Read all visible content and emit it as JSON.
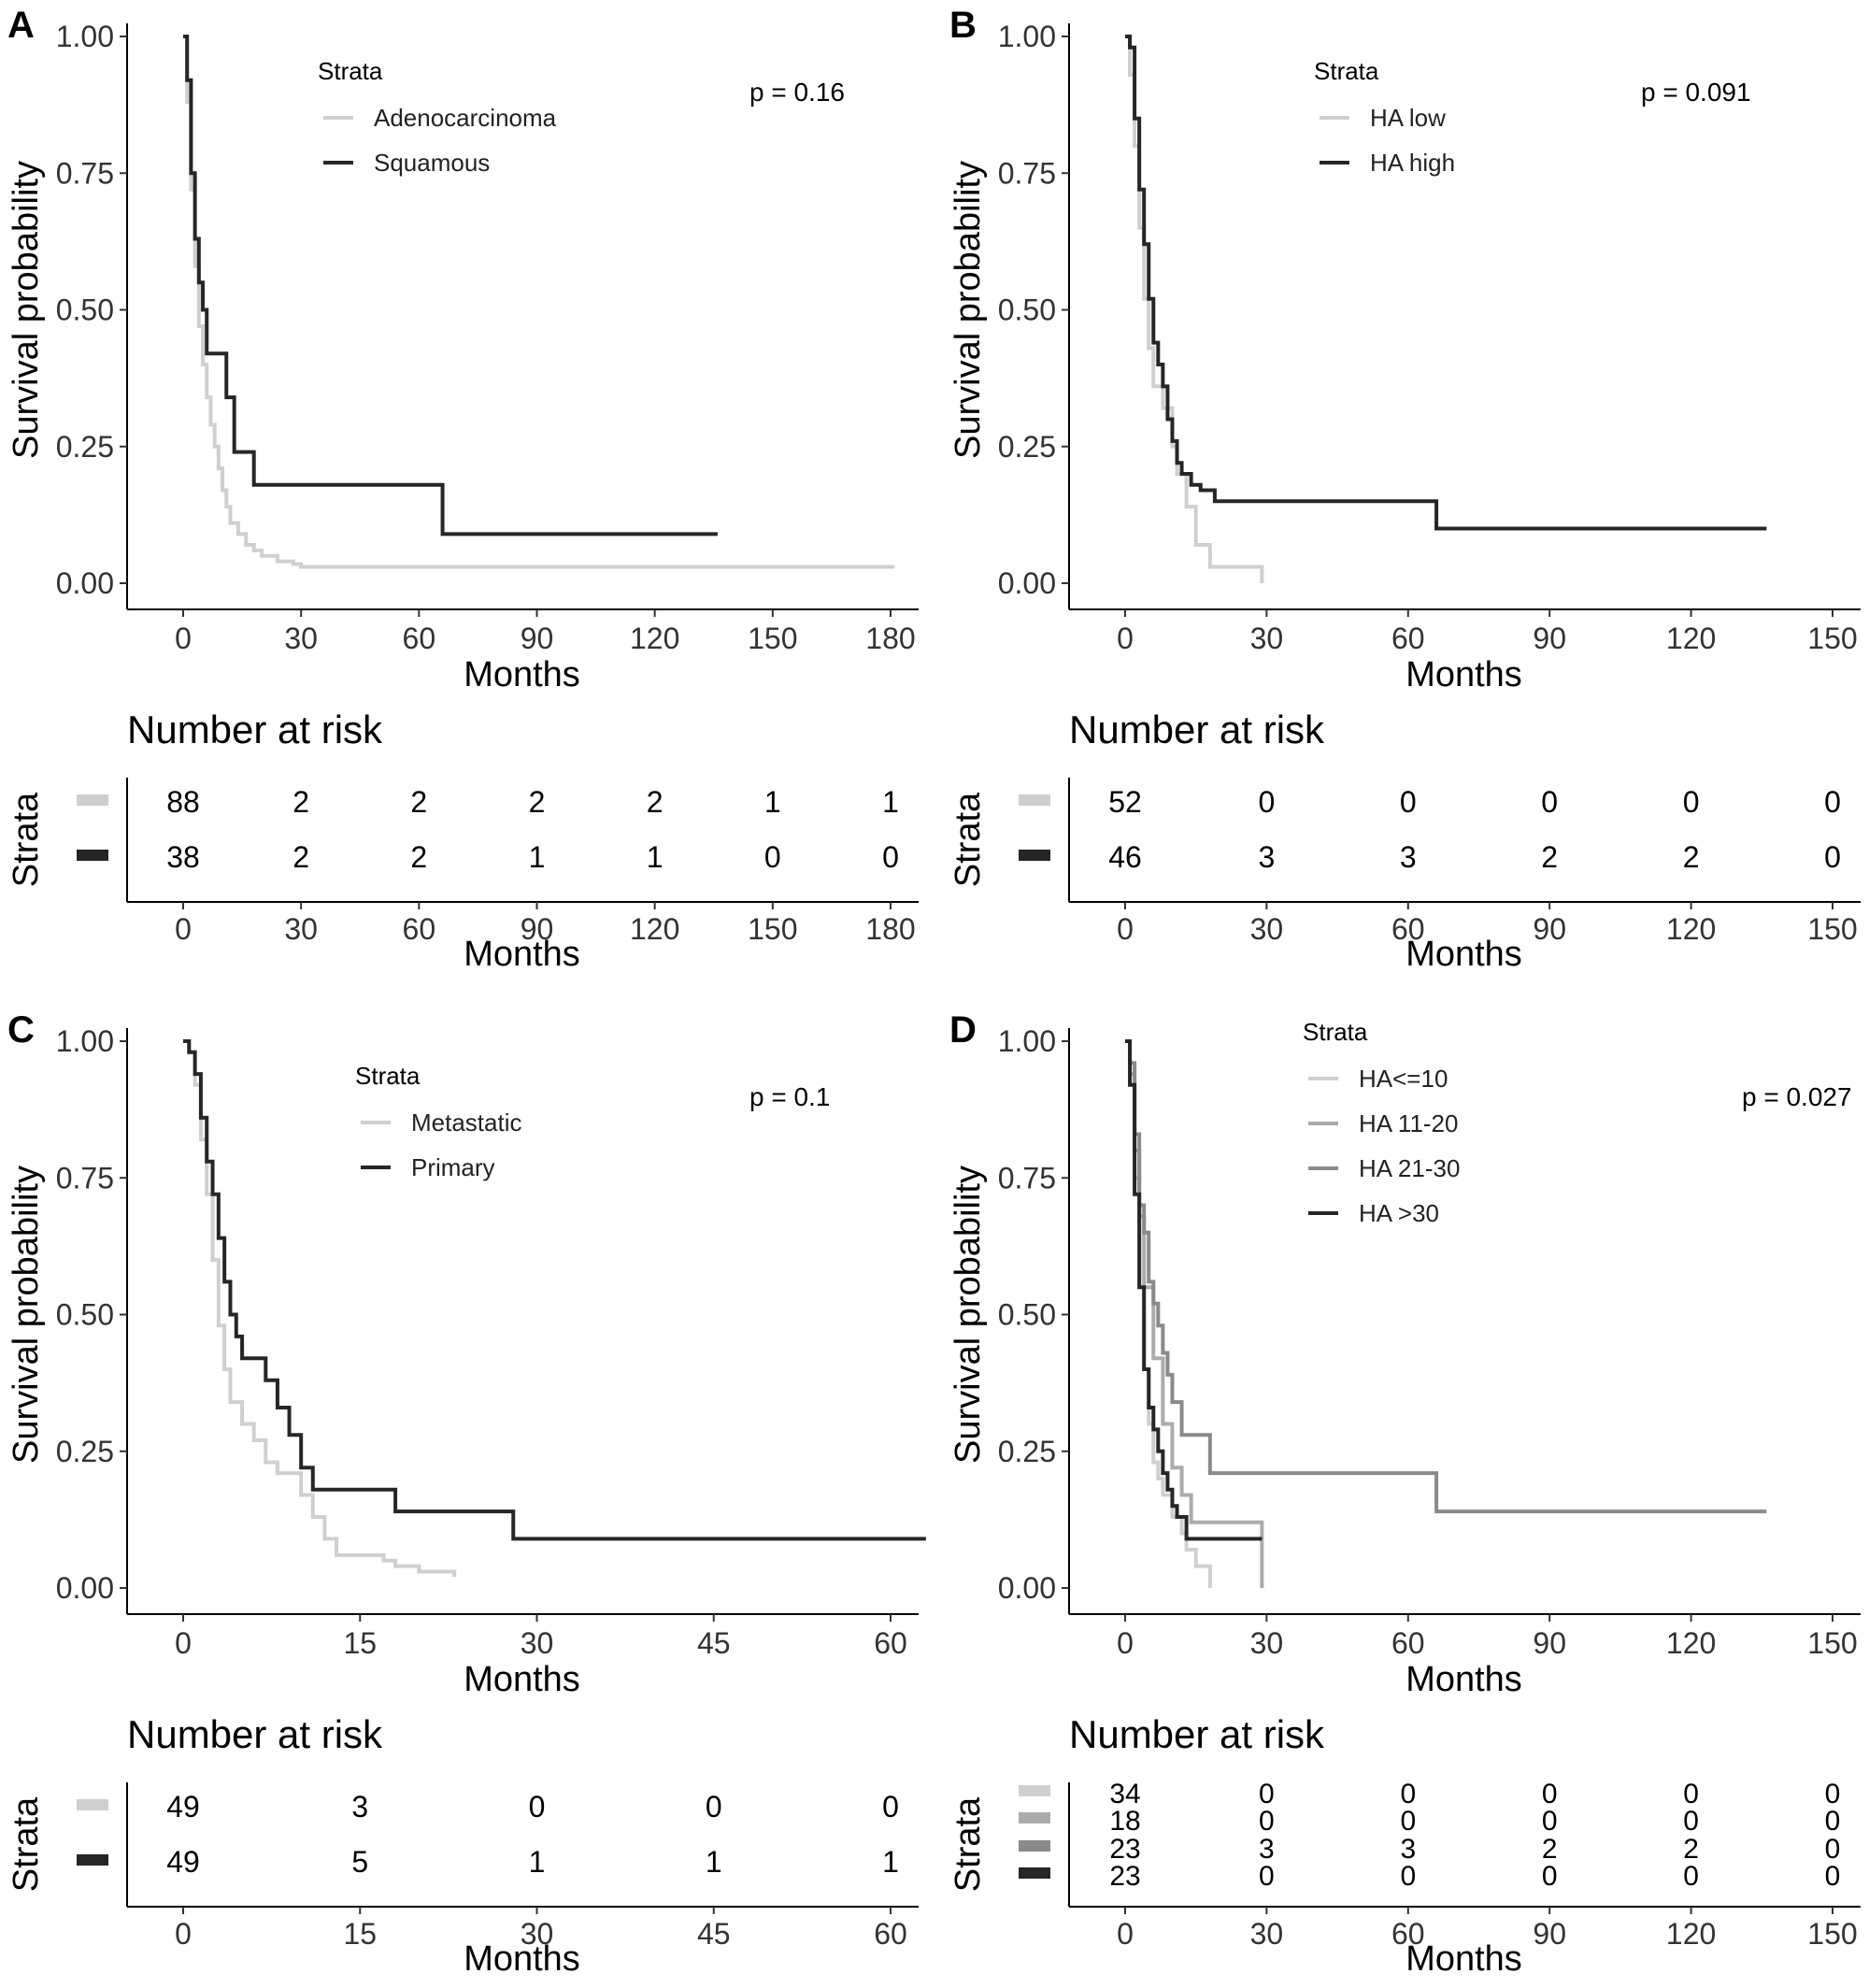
{
  "colors": {
    "gray1": "#cfcfcf",
    "gray2": "#ababab",
    "gray3": "#8a8a8a",
    "dark": "#262626"
  },
  "panels": {
    "A": {
      "letter": "A",
      "ylabel": "Survival probability",
      "xlabel": "Months",
      "pvalue": "p = 0.16",
      "legend": {
        "title": "Strata",
        "labels": [
          "Adenocarcinoma",
          "Squamous"
        ]
      },
      "xticks": [
        "0",
        "30",
        "60",
        "90",
        "120",
        "150",
        "180"
      ],
      "yticks": [
        "0.00",
        "0.25",
        "0.50",
        "0.75",
        "1.00"
      ],
      "risk": {
        "title": "Number at risk",
        "ylabel": "Strata",
        "xlabel": "Months",
        "rows": [
          [
            "88",
            "2",
            "2",
            "2",
            "2",
            "1",
            "1"
          ],
          [
            "38",
            "2",
            "2",
            "1",
            "1",
            "0",
            "0"
          ]
        ]
      }
    },
    "B": {
      "letter": "B",
      "ylabel": "Survival probability",
      "xlabel": "Months",
      "pvalue": "p = 0.091",
      "legend": {
        "title": "Strata",
        "labels": [
          "HA low",
          "HA high"
        ]
      },
      "xticks": [
        "0",
        "30",
        "60",
        "90",
        "120",
        "150"
      ],
      "yticks": [
        "0.00",
        "0.25",
        "0.50",
        "0.75",
        "1.00"
      ],
      "risk": {
        "title": "Number at risk",
        "ylabel": "Strata",
        "xlabel": "Months",
        "rows": [
          [
            "52",
            "0",
            "0",
            "0",
            "0",
            "0"
          ],
          [
            "46",
            "3",
            "3",
            "2",
            "2",
            "0"
          ]
        ]
      }
    },
    "C": {
      "letter": "C",
      "ylabel": "Survival probability",
      "xlabel": "Months",
      "pvalue": "p = 0.1",
      "legend": {
        "title": "Strata",
        "labels": [
          "Metastatic",
          "Primary"
        ]
      },
      "xticks": [
        "0",
        "15",
        "30",
        "45",
        "60"
      ],
      "yticks": [
        "0.00",
        "0.25",
        "0.50",
        "0.75",
        "1.00"
      ],
      "risk": {
        "title": "Number at risk",
        "ylabel": "Strata",
        "xlabel": "Months",
        "rows": [
          [
            "49",
            "3",
            "0",
            "0",
            "0"
          ],
          [
            "49",
            "5",
            "1",
            "1",
            "1"
          ]
        ]
      }
    },
    "D": {
      "letter": "D",
      "ylabel": "Survival probability",
      "xlabel": "Months",
      "pvalue": "p = 0.027",
      "legend": {
        "title": "Strata",
        "labels": [
          "HA<=10",
          "HA 11-20",
          "HA 21-30",
          "HA >30"
        ]
      },
      "xticks": [
        "0",
        "30",
        "60",
        "90",
        "120",
        "150"
      ],
      "yticks": [
        "0.00",
        "0.25",
        "0.50",
        "0.75",
        "1.00"
      ],
      "risk": {
        "title": "Number at risk",
        "ylabel": "Strata",
        "xlabel": "Months",
        "rows": [
          [
            "34",
            "0",
            "0",
            "0",
            "0",
            "0"
          ],
          [
            "18",
            "0",
            "0",
            "0",
            "0",
            "0"
          ],
          [
            "23",
            "3",
            "3",
            "2",
            "2",
            "0"
          ],
          [
            "23",
            "0",
            "0",
            "0",
            "0",
            "0"
          ]
        ]
      }
    }
  },
  "chart_data": [
    {
      "type": "line",
      "title": "",
      "xlabel": "Months",
      "ylabel": "Survival probability",
      "xlim": [
        0,
        180
      ],
      "ylim": [
        0,
        1
      ],
      "series": [
        {
          "name": "Adenocarcinoma",
          "color": "gray1",
          "x": [
            0,
            1,
            2,
            3,
            4,
            5,
            6,
            7,
            8,
            9,
            10,
            11,
            12,
            14,
            16,
            18,
            20,
            24,
            28,
            30,
            181
          ],
          "y": [
            1.0,
            0.88,
            0.72,
            0.58,
            0.47,
            0.4,
            0.34,
            0.29,
            0.25,
            0.21,
            0.17,
            0.14,
            0.11,
            0.09,
            0.07,
            0.06,
            0.05,
            0.04,
            0.035,
            0.03,
            0.03
          ]
        },
        {
          "name": "Squamous",
          "color": "dark",
          "x": [
            0,
            1,
            2,
            3,
            4,
            5,
            6,
            8,
            11,
            13,
            18,
            66,
            136
          ],
          "y": [
            1.0,
            0.92,
            0.75,
            0.63,
            0.55,
            0.5,
            0.42,
            0.42,
            0.34,
            0.24,
            0.18,
            0.09,
            0.09
          ]
        }
      ]
    },
    {
      "type": "line",
      "title": "",
      "xlabel": "Months",
      "ylabel": "Survival probability",
      "xlim": [
        0,
        150
      ],
      "ylim": [
        0,
        1
      ],
      "series": [
        {
          "name": "HA low",
          "color": "gray1",
          "x": [
            0,
            1,
            2,
            3,
            4,
            5,
            6,
            8,
            10,
            11,
            13,
            15,
            18,
            29
          ],
          "y": [
            1.0,
            0.93,
            0.8,
            0.65,
            0.52,
            0.43,
            0.36,
            0.32,
            0.25,
            0.2,
            0.14,
            0.07,
            0.03,
            0.0
          ]
        },
        {
          "name": "HA high",
          "color": "dark",
          "x": [
            0,
            1,
            2,
            3,
            4,
            5,
            6,
            7,
            8,
            9,
            10,
            11,
            12,
            14,
            16,
            19,
            66,
            136
          ],
          "y": [
            1.0,
            0.98,
            0.85,
            0.72,
            0.62,
            0.52,
            0.44,
            0.4,
            0.36,
            0.3,
            0.26,
            0.22,
            0.2,
            0.18,
            0.17,
            0.15,
            0.1,
            0.1
          ]
        }
      ]
    },
    {
      "type": "line",
      "title": "",
      "xlabel": "Months",
      "ylabel": "Survival probability",
      "xlim": [
        0,
        63
      ],
      "ylim": [
        0,
        1
      ],
      "series": [
        {
          "name": "Metastatic",
          "color": "gray1",
          "x": [
            0,
            0.5,
            1,
            1.5,
            2,
            2.5,
            3,
            3.5,
            4,
            5,
            6,
            7,
            8,
            10,
            11,
            12,
            13,
            17,
            18,
            20,
            23
          ],
          "y": [
            1.0,
            0.98,
            0.92,
            0.82,
            0.72,
            0.6,
            0.48,
            0.4,
            0.34,
            0.3,
            0.27,
            0.23,
            0.21,
            0.17,
            0.13,
            0.09,
            0.06,
            0.05,
            0.04,
            0.03,
            0.02
          ]
        },
        {
          "name": "Primary",
          "color": "dark",
          "x": [
            0,
            0.5,
            1,
            1.5,
            2,
            2.5,
            3,
            3.5,
            4,
            4.5,
            5,
            7,
            8,
            9,
            10,
            11,
            18,
            28,
            63
          ],
          "y": [
            1.0,
            0.98,
            0.94,
            0.86,
            0.78,
            0.72,
            0.64,
            0.56,
            0.5,
            0.46,
            0.42,
            0.38,
            0.33,
            0.28,
            0.22,
            0.18,
            0.14,
            0.09,
            0.09
          ]
        }
      ]
    },
    {
      "type": "line",
      "title": "",
      "xlabel": "Months",
      "ylabel": "Survival probability",
      "xlim": [
        0,
        150
      ],
      "ylim": [
        0,
        1
      ],
      "series": [
        {
          "name": "HA<=10",
          "color": "gray1",
          "x": [
            0,
            1,
            2,
            3,
            4,
            5,
            6,
            7,
            8,
            10,
            12,
            13,
            15,
            18
          ],
          "y": [
            1.0,
            0.92,
            0.75,
            0.55,
            0.4,
            0.3,
            0.23,
            0.2,
            0.17,
            0.13,
            0.1,
            0.07,
            0.04,
            0.0
          ]
        },
        {
          "name": "HA 11-20",
          "color": "gray2",
          "x": [
            0,
            1,
            2,
            3,
            4,
            6,
            8,
            10,
            12,
            14,
            16,
            18,
            29
          ],
          "y": [
            1.0,
            0.94,
            0.8,
            0.68,
            0.55,
            0.42,
            0.3,
            0.22,
            0.17,
            0.12,
            0.12,
            0.12,
            0.0
          ]
        },
        {
          "name": "HA 21-30",
          "color": "gray3",
          "x": [
            0,
            1,
            2,
            3,
            4,
            5,
            6,
            7,
            8,
            9,
            10,
            12,
            18,
            66,
            136
          ],
          "y": [
            1.0,
            0.96,
            0.83,
            0.7,
            0.65,
            0.56,
            0.52,
            0.48,
            0.43,
            0.39,
            0.34,
            0.28,
            0.21,
            0.14,
            0.14
          ]
        },
        {
          "name": "HA >30",
          "color": "dark",
          "x": [
            0,
            1,
            2,
            3,
            4,
            5,
            6,
            7,
            8,
            9,
            10,
            11,
            13,
            16,
            29
          ],
          "y": [
            1.0,
            0.92,
            0.72,
            0.55,
            0.4,
            0.33,
            0.29,
            0.25,
            0.21,
            0.18,
            0.15,
            0.13,
            0.09,
            0.09,
            0.09
          ]
        }
      ]
    }
  ]
}
